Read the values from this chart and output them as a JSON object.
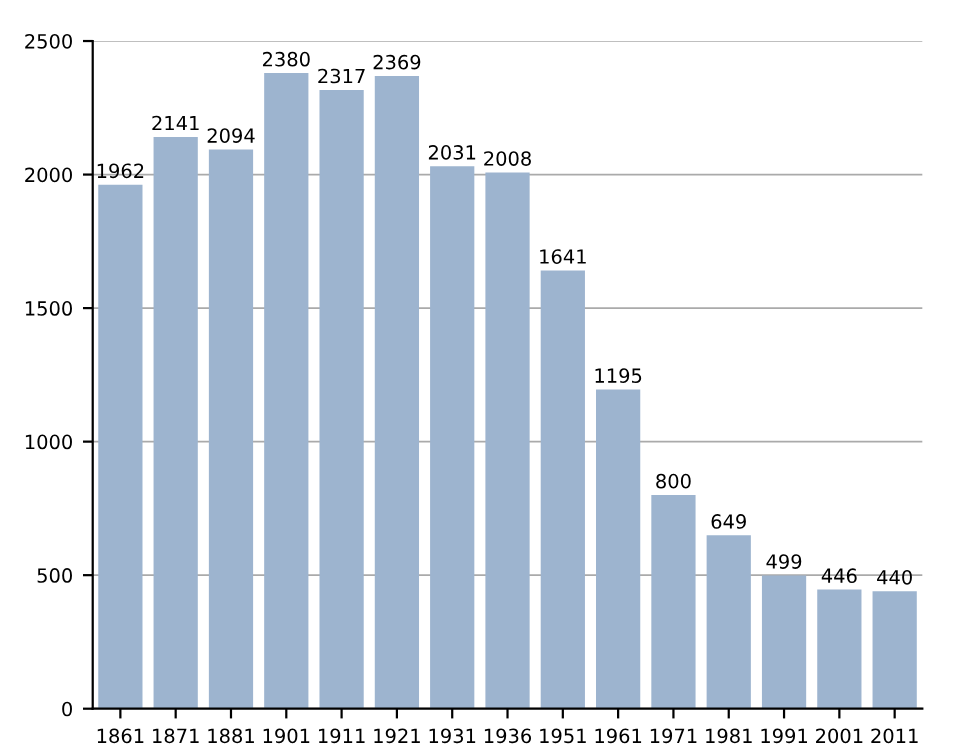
{
  "chart_data": {
    "type": "bar",
    "categories": [
      "1861",
      "1871",
      "1881",
      "1901",
      "1911",
      "1921",
      "1931",
      "1936",
      "1951",
      "1961",
      "1971",
      "1981",
      "1991",
      "2001",
      "2011"
    ],
    "values": [
      1962,
      2141,
      2094,
      2380,
      2317,
      2369,
      2031,
      2008,
      1641,
      1195,
      800,
      649,
      499,
      446,
      440
    ],
    "color": "#9db4cf",
    "ylim": [
      0,
      2500
    ],
    "yticks": [
      0,
      500,
      1000,
      1500,
      2000,
      2500
    ],
    "grid": "y",
    "data_labels": true
  }
}
